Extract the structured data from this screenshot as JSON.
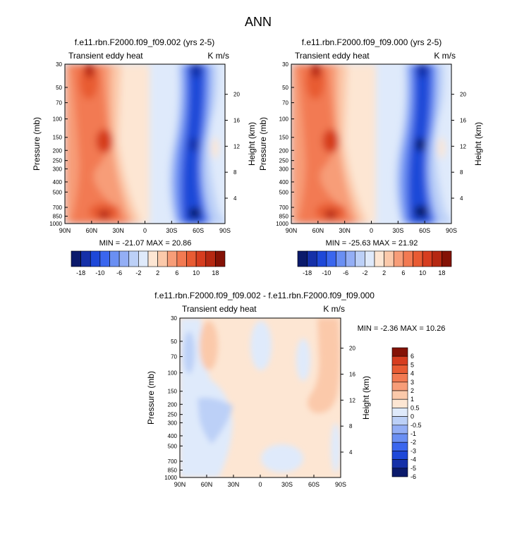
{
  "figure_title": "ANN",
  "colors": {
    "cb1": [
      "#0b1a6b",
      "#1530a8",
      "#1e48d8",
      "#3a66ee",
      "#6a8ff3",
      "#93aef5",
      "#bcd0f7",
      "#dfeafb",
      "#fde6d3",
      "#fbc9aa",
      "#f79d78",
      "#f27a52",
      "#e85b33",
      "#d63d1f",
      "#b52812",
      "#841206"
    ],
    "cb2": [
      "#0b1a6b",
      "#1530a8",
      "#1e48d8",
      "#3a66ee",
      "#6a8ff3",
      "#93aef5",
      "#bcd0f7",
      "#dfeafb",
      "#fde6d3",
      "#fbc9aa",
      "#f79d78",
      "#f27a52",
      "#e85b33",
      "#d63d1f",
      "#841206"
    ]
  },
  "chart_data": [
    {
      "id": "p1",
      "type": "heatmap",
      "title": "f.e11.rbn.F2000.f09_f09.002 (yrs 2-5)",
      "subtitle_left": "Transient eddy heat",
      "subtitle_right": "K m/s",
      "ylabel": "Pressure (mb)",
      "y2label": "Height (km)",
      "x_ticks": [
        "90N",
        "60N",
        "30N",
        "0",
        "30S",
        "60S",
        "90S"
      ],
      "y_ticks": [
        "30",
        "50",
        "70",
        "100",
        "150",
        "200",
        "250",
        "300",
        "400",
        "500",
        "700",
        "850",
        "1000"
      ],
      "y2_ticks": [
        "20",
        "16",
        "12",
        "8",
        "4"
      ],
      "min_max_text": "MIN = -21.07  MAX = 20.86",
      "colorbar_labels": [
        "-18",
        "-10",
        "-6",
        "-2",
        "2",
        "6",
        "10",
        "18"
      ],
      "field": {
        "lat_range": [
          90,
          -90
        ],
        "pressure_range_mb": [
          30,
          1000
        ],
        "features": [
          {
            "region": "NH mid-latitudes (about 45N-75N), full column",
            "value_range": [
              6,
              21
            ]
          },
          {
            "region": "NH subtropics (about 5N-30N)",
            "value_range": [
              0,
              4
            ]
          },
          {
            "region": "SH mid-latitudes (about 40S-70S), full column",
            "value_range": [
              -21,
              -6
            ]
          },
          {
            "region": "SH high latitudes upper troposphere (about 75S-85S, 150-250 mb)",
            "value_range": [
              1,
              4
            ]
          }
        ]
      }
    },
    {
      "id": "p2",
      "type": "heatmap",
      "title": "f.e11.rbn.F2000.f09_f09.000 (yrs 2-5)",
      "subtitle_left": "Transient eddy heat",
      "subtitle_right": "K m/s",
      "ylabel": "Pressure (mb)",
      "y2label": "Height (km)",
      "x_ticks": [
        "90N",
        "60N",
        "30N",
        "0",
        "30S",
        "60S",
        "90S"
      ],
      "y_ticks": [
        "30",
        "50",
        "70",
        "100",
        "150",
        "200",
        "250",
        "300",
        "400",
        "500",
        "700",
        "850",
        "1000"
      ],
      "y2_ticks": [
        "20",
        "16",
        "12",
        "8",
        "4"
      ],
      "min_max_text": "MIN = -25.63  MAX = 21.92",
      "colorbar_labels": [
        "-18",
        "-10",
        "-6",
        "-2",
        "2",
        "6",
        "10",
        "18"
      ],
      "field": {
        "lat_range": [
          90,
          -90
        ],
        "pressure_range_mb": [
          30,
          1000
        ],
        "features": [
          {
            "region": "NH mid-latitudes (about 45N-75N), full column",
            "value_range": [
              6,
              22
            ]
          },
          {
            "region": "NH subtropics (about 5N-30N)",
            "value_range": [
              0,
              4
            ]
          },
          {
            "region": "SH mid-latitudes (about 40S-70S), full column",
            "value_range": [
              -26,
              -6
            ]
          },
          {
            "region": "SH high latitudes upper troposphere (about 75S-85S, 150-250 mb)",
            "value_range": [
              1,
              4
            ]
          }
        ]
      }
    },
    {
      "id": "p3",
      "type": "heatmap",
      "title": "f.e11.rbn.F2000.f09_f09.002 - f.e11.rbn.F2000.f09_f09.000",
      "subtitle_left": "Transient eddy heat",
      "subtitle_right": "K m/s",
      "ylabel": "Pressure (mb)",
      "y2label": "Height (km)",
      "x_ticks": [
        "90N",
        "60N",
        "30N",
        "0",
        "30S",
        "60S",
        "90S"
      ],
      "y_ticks": [
        "30",
        "50",
        "70",
        "100",
        "150",
        "200",
        "250",
        "300",
        "400",
        "500",
        "700",
        "850",
        "1000"
      ],
      "y2_ticks": [
        "20",
        "16",
        "12",
        "8",
        "4"
      ],
      "min_max_text": "MIN =  -2.36  MAX =  10.26",
      "colorbar_labels": [
        "6",
        "5",
        "4",
        "3",
        "2",
        "1",
        "0.5",
        "0",
        "-0.5",
        "-1",
        "-2",
        "-3",
        "-4",
        "-5",
        "-6"
      ],
      "field": {
        "lat_range": [
          90,
          -90
        ],
        "pressure_range_mb": [
          30,
          1000
        ],
        "features": [
          {
            "region": "NH about 55N-70N, 30-150 mb",
            "value_range": [
              0.5,
              2
            ]
          },
          {
            "region": "NH about 30N-60N, 150-400 mb",
            "value_range": [
              -1,
              -0.5
            ]
          },
          {
            "region": "Tropics and SH subtropics",
            "value_range": [
              0,
              0.5
            ]
          },
          {
            "region": "SH about 60S-85S, 30-250 mb",
            "value_range": [
              0.5,
              2
            ]
          }
        ]
      }
    }
  ]
}
